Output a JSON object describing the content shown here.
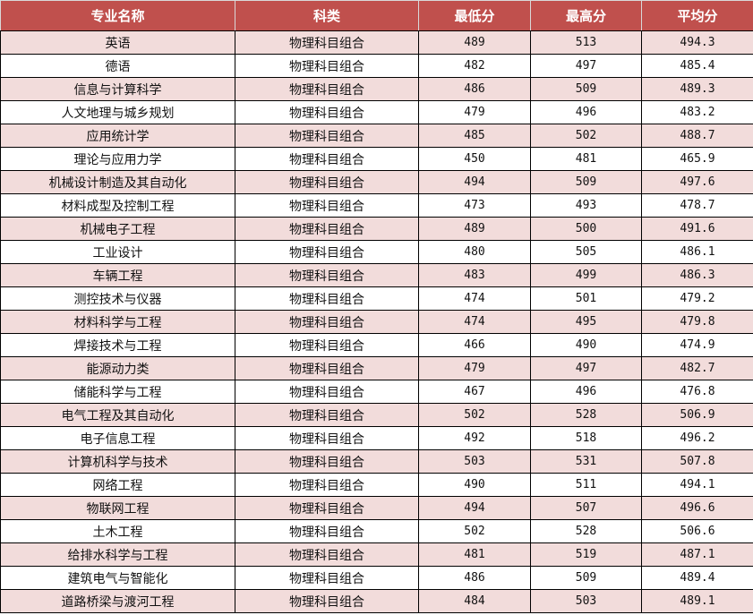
{
  "colors": {
    "header_bg": "#c0504d",
    "alt_row_bg": "#f2dcdb"
  },
  "table": {
    "headers": [
      "专业名称",
      "科类",
      "最低分",
      "最高分",
      "平均分"
    ],
    "rows": [
      [
        "英语",
        "物理科目组合",
        "489",
        "513",
        "494.3"
      ],
      [
        "德语",
        "物理科目组合",
        "482",
        "497",
        "485.4"
      ],
      [
        "信息与计算科学",
        "物理科目组合",
        "486",
        "509",
        "489.3"
      ],
      [
        "人文地理与城乡规划",
        "物理科目组合",
        "479",
        "496",
        "483.2"
      ],
      [
        "应用统计学",
        "物理科目组合",
        "485",
        "502",
        "488.7"
      ],
      [
        "理论与应用力学",
        "物理科目组合",
        "450",
        "481",
        "465.9"
      ],
      [
        "机械设计制造及其自动化",
        "物理科目组合",
        "494",
        "509",
        "497.6"
      ],
      [
        "材料成型及控制工程",
        "物理科目组合",
        "473",
        "493",
        "478.7"
      ],
      [
        "机械电子工程",
        "物理科目组合",
        "489",
        "500",
        "491.6"
      ],
      [
        "工业设计",
        "物理科目组合",
        "480",
        "505",
        "486.1"
      ],
      [
        "车辆工程",
        "物理科目组合",
        "483",
        "499",
        "486.3"
      ],
      [
        "测控技术与仪器",
        "物理科目组合",
        "474",
        "501",
        "479.2"
      ],
      [
        "材料科学与工程",
        "物理科目组合",
        "474",
        "495",
        "479.8"
      ],
      [
        "焊接技术与工程",
        "物理科目组合",
        "466",
        "490",
        "474.9"
      ],
      [
        "能源动力类",
        "物理科目组合",
        "479",
        "497",
        "482.7"
      ],
      [
        "储能科学与工程",
        "物理科目组合",
        "467",
        "496",
        "476.8"
      ],
      [
        "电气工程及其自动化",
        "物理科目组合",
        "502",
        "528",
        "506.9"
      ],
      [
        "电子信息工程",
        "物理科目组合",
        "492",
        "518",
        "496.2"
      ],
      [
        "计算机科学与技术",
        "物理科目组合",
        "503",
        "531",
        "507.8"
      ],
      [
        "网络工程",
        "物理科目组合",
        "490",
        "511",
        "494.1"
      ],
      [
        "物联网工程",
        "物理科目组合",
        "494",
        "507",
        "496.6"
      ],
      [
        "土木工程",
        "物理科目组合",
        "502",
        "528",
        "506.6"
      ],
      [
        "给排水科学与工程",
        "物理科目组合",
        "481",
        "519",
        "487.1"
      ],
      [
        "建筑电气与智能化",
        "物理科目组合",
        "486",
        "509",
        "489.4"
      ],
      [
        "道路桥梁与渡河工程",
        "物理科目组合",
        "484",
        "503",
        "489.1"
      ]
    ]
  }
}
